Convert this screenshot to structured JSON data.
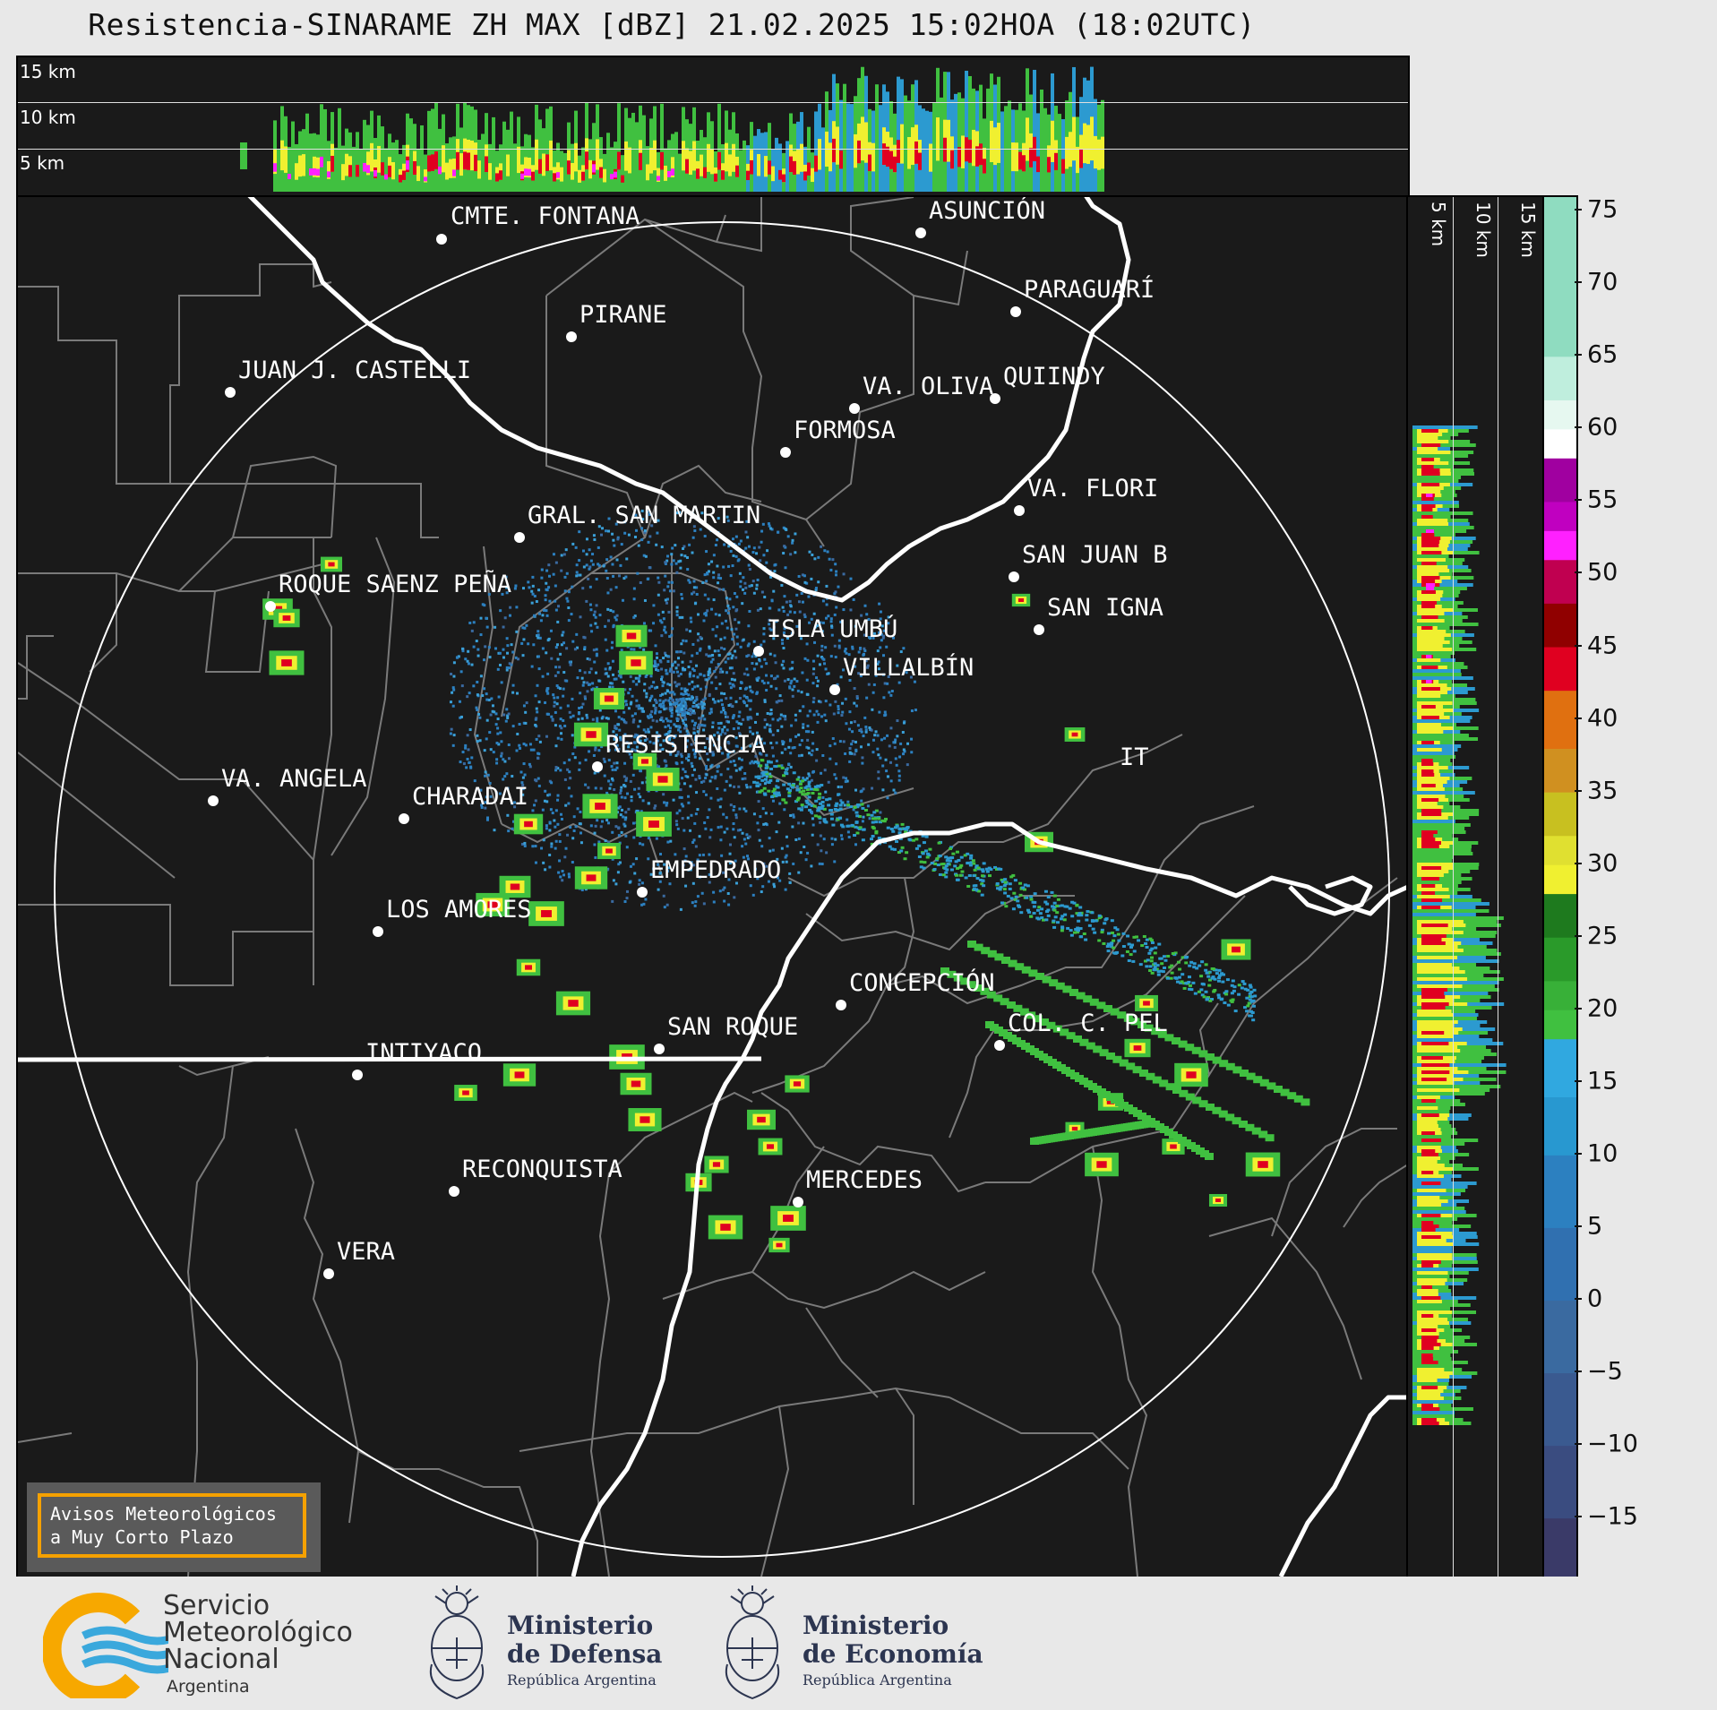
{
  "title": "Resistencia-SINARAME ZH MAX [dBZ] 21.02.2025 15:02HOA (18:02UTC)",
  "top_panel": {
    "altitude_labels": [
      "15 km",
      "10 km",
      "5 km"
    ]
  },
  "right_panel": {
    "altitude_labels": [
      "5 km",
      "10 km",
      "15 km"
    ]
  },
  "colorbar": {
    "unit": "dBZ",
    "ticks": [
      "75",
      "70",
      "65",
      "60",
      "55",
      "50",
      "45",
      "40",
      "35",
      "30",
      "25",
      "20",
      "15",
      "10",
      "5",
      "0",
      "−5",
      "−10",
      "−15"
    ],
    "range": [
      -19,
      76
    ],
    "colors": {
      "c75": "#8fdcc0",
      "c65": "#bfeedd",
      "c60": "#ffffff",
      "c55": "#a000a0",
      "c52": "#ff20ff",
      "c50": "#c00050",
      "c46": "#900000",
      "c43": "#e00020",
      "c40": "#e07010",
      "c35": "#c8c020",
      "c30": "#f0f030",
      "c25": "#1e7a1e",
      "c20": "#40c040",
      "c17": "#30a8e0",
      "c10": "#2c80c0",
      "c0": "#3a6aa0",
      "cm10": "#3a4c80",
      "cm15": "#3a3a68"
    }
  },
  "map": {
    "cities": [
      {
        "name": "CMTE. FONTANA"
      },
      {
        "name": "ASUNCIÓN"
      },
      {
        "name": "PARAGUARÍ"
      },
      {
        "name": "PIRANE"
      },
      {
        "name": "JUAN J. CASTELLI"
      },
      {
        "name": "VA. OLIVA"
      },
      {
        "name": "QUIINDY"
      },
      {
        "name": "FORMOSA"
      },
      {
        "name": "VA. FLORI"
      },
      {
        "name": "GRAL. SAN MARTIN"
      },
      {
        "name": "SAN JUAN B"
      },
      {
        "name": "ROQUE SAENZ PEÑA"
      },
      {
        "name": "SAN IGNA"
      },
      {
        "name": "ISLA UMBÚ"
      },
      {
        "name": "VILLALBÍN"
      },
      {
        "name": "RESISTENCIA"
      },
      {
        "name": "VA. ANGELA"
      },
      {
        "name": "CHARADAI"
      },
      {
        "name": "IT"
      },
      {
        "name": "EMPEDRADO"
      },
      {
        "name": "LOS AMORES"
      },
      {
        "name": "CONCEPCIÓN"
      },
      {
        "name": "SAN ROQUE"
      },
      {
        "name": "COL. C. PEL"
      },
      {
        "name": "INTIYACO"
      },
      {
        "name": "RECONQUISTA"
      },
      {
        "name": "MERCEDES"
      },
      {
        "name": "VERA"
      }
    ]
  },
  "alerts": {
    "line1": "Avisos Meteorológicos",
    "line2": "a Muy Corto Plazo"
  },
  "footer": {
    "smn": {
      "line1": "Servicio",
      "line2": "Meteorológico",
      "line3": "Nacional",
      "line4": "Argentina"
    },
    "defensa": {
      "line1": "Ministerio",
      "line2": "de Defensa",
      "line3": "República Argentina"
    },
    "economia": {
      "line1": "Ministerio",
      "line2": "de Economía",
      "line3": "República Argentina"
    }
  }
}
